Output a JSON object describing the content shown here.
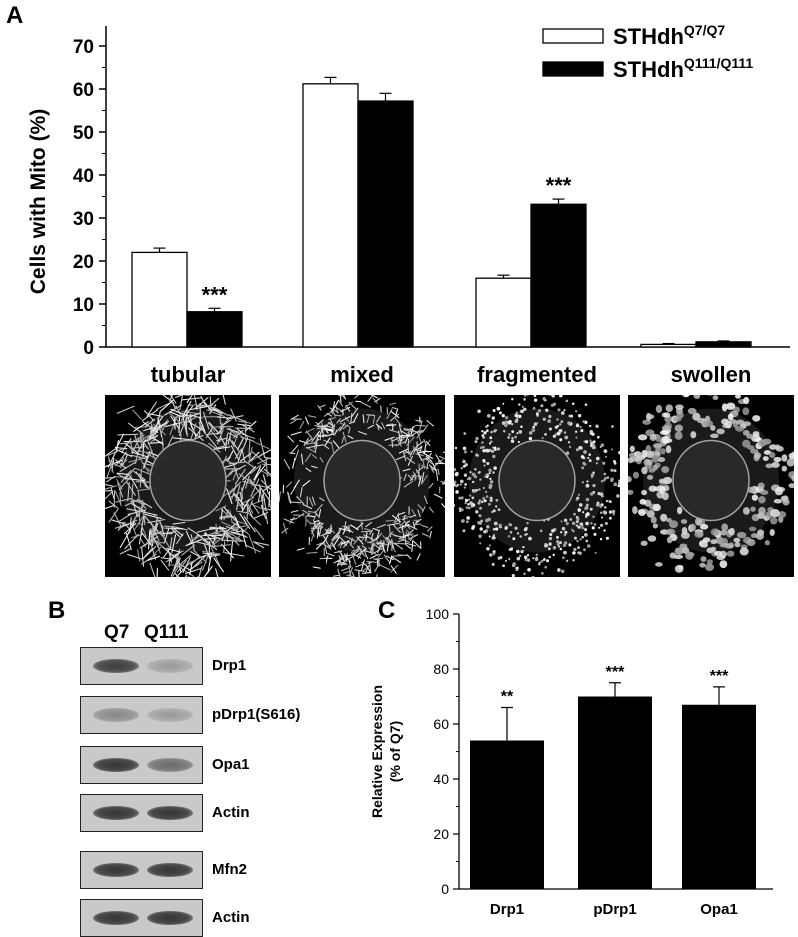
{
  "panel_a": {
    "label": "A",
    "legend": [
      {
        "base": "STHdh",
        "sup": "Q7/Q7",
        "fill": "#ffffff"
      },
      {
        "base": "STHdh",
        "sup": "Q111/Q111",
        "fill": "#000000"
      }
    ],
    "images": [
      {
        "label": "tubular"
      },
      {
        "label": "mixed"
      },
      {
        "label": "fragmented"
      },
      {
        "label": "swollen"
      }
    ]
  },
  "panel_b": {
    "label": "B",
    "columns": [
      "Q7",
      "Q111"
    ],
    "blots": [
      {
        "label": "Drp1",
        "q7": 0.85,
        "q111": 0.35
      },
      {
        "label": "pDrp1(S616)",
        "q7": 0.45,
        "q111": 0.35
      },
      {
        "label": "Opa1",
        "q7": 0.9,
        "q111": 0.6
      },
      {
        "label": "Actin",
        "q7": 0.9,
        "q111": 0.9
      },
      {
        "label": "Mfn2",
        "q7": 0.9,
        "q111": 0.9
      },
      {
        "label": "Actin",
        "q7": 0.9,
        "q111": 0.9
      }
    ]
  },
  "panel_c": {
    "label": "C"
  },
  "chart_data": [
    {
      "type": "bar",
      "ylabel": "Cells with Mito (%)",
      "ylim": [
        0,
        70
      ],
      "yticks": [
        0,
        10,
        20,
        30,
        40,
        50,
        60,
        70
      ],
      "categories": [
        "tubular",
        "mixed",
        "fragmented",
        "swollen"
      ],
      "series": [
        {
          "name": "STHdh Q7/Q7",
          "color": "#ffffff",
          "values": [
            22,
            61.2,
            16,
            0.6
          ],
          "errors": [
            1.0,
            1.5,
            0.7,
            0.2
          ],
          "sig": [
            "",
            "",
            "",
            ""
          ]
        },
        {
          "name": "STHdh Q111/Q111",
          "color": "#000000",
          "values": [
            8.2,
            57.2,
            33.2,
            1.2
          ],
          "errors": [
            0.8,
            1.8,
            1.2,
            0.2
          ],
          "sig": [
            "***",
            "",
            "***",
            ""
          ]
        }
      ],
      "grid": false,
      "legend": "top-right"
    },
    {
      "type": "bar",
      "ylabel_lines": [
        "Relative Expression",
        "(% of Q7)"
      ],
      "ylim": [
        0,
        100
      ],
      "yticks": [
        0,
        20,
        40,
        60,
        80,
        100
      ],
      "categories": [
        "Drp1",
        "pDrp1",
        "Opa1"
      ],
      "values": [
        54,
        70,
        67
      ],
      "errors": [
        12,
        5,
        6.5
      ],
      "sig": [
        "**",
        "***",
        "***"
      ],
      "color": "#000000",
      "grid": false
    }
  ]
}
